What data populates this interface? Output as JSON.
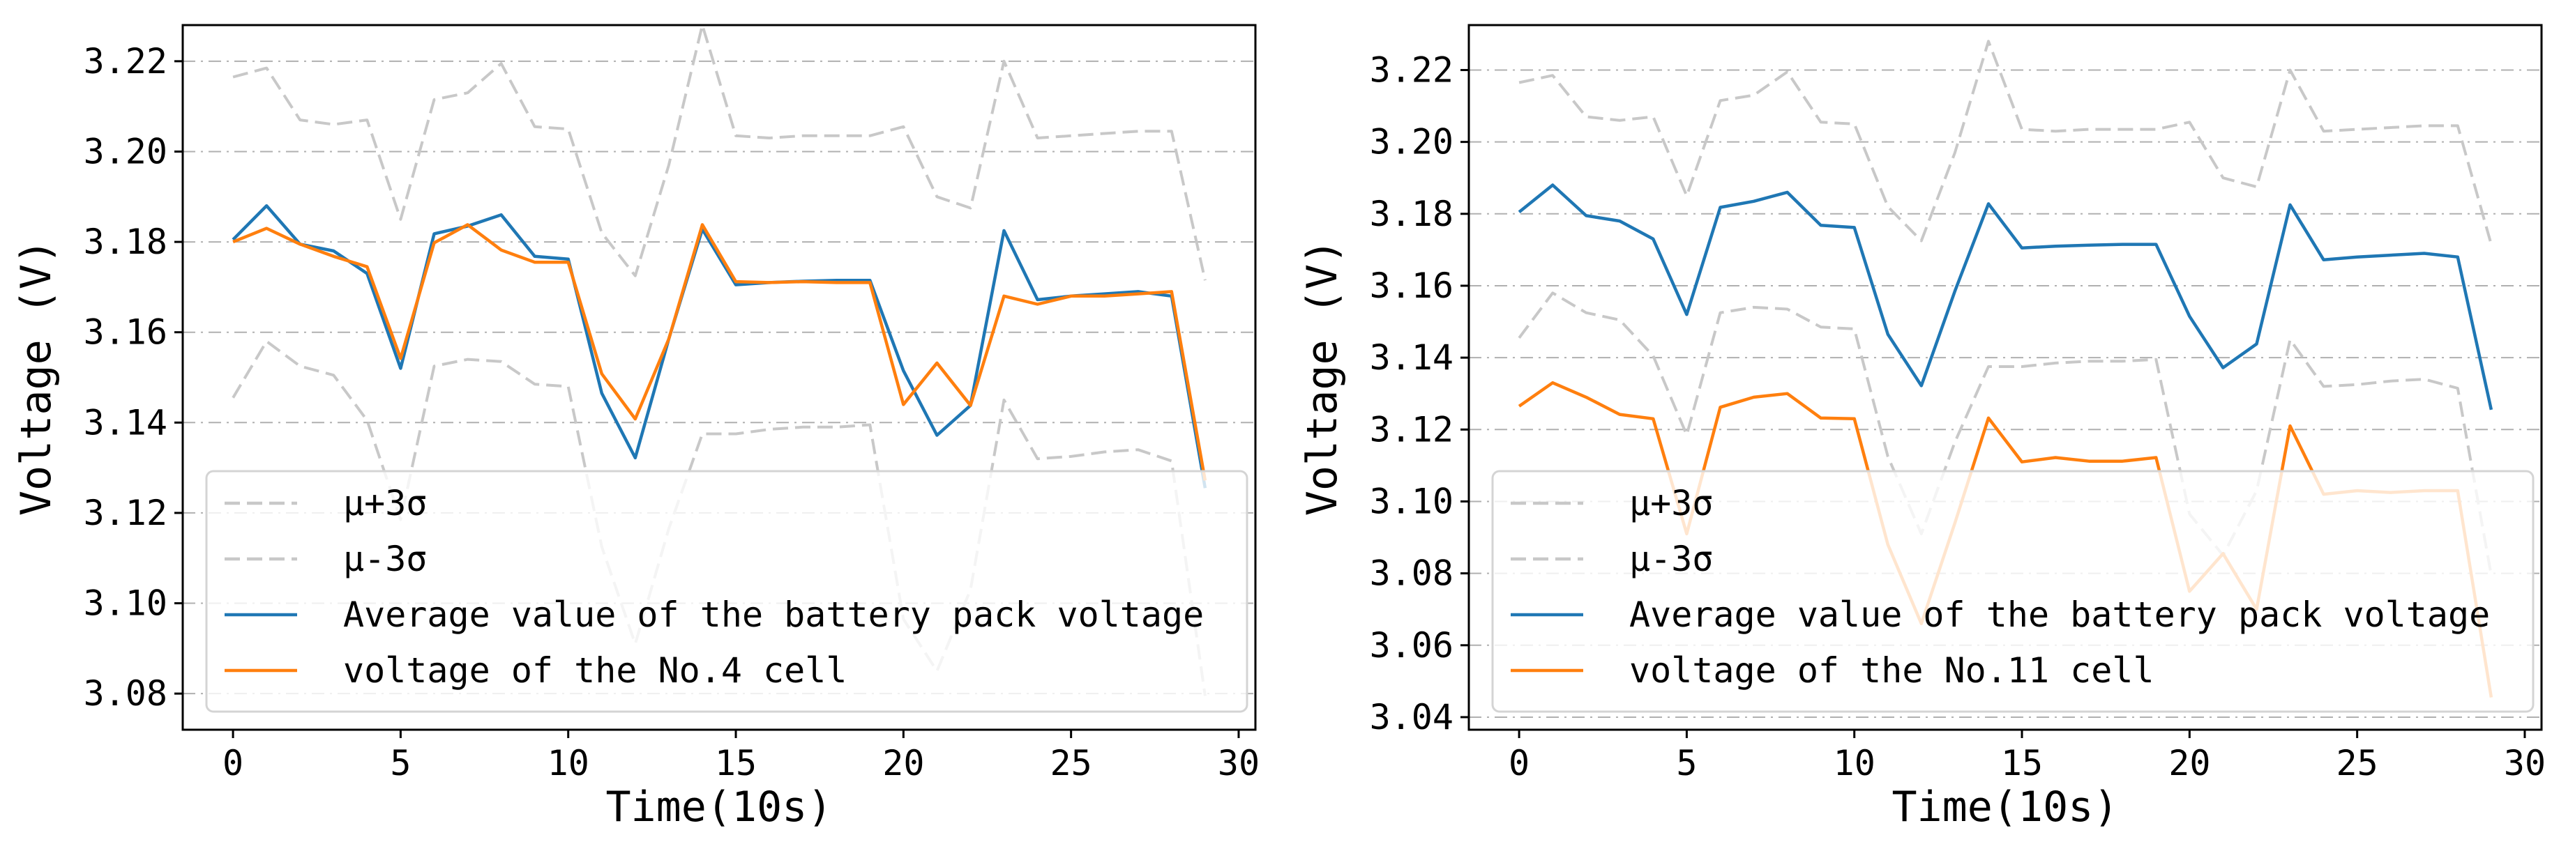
{
  "chart_data": [
    {
      "type": "line",
      "title": "",
      "xlabel": "Time(10s)",
      "ylabel": "Voltage (V)",
      "xlim": [
        -1.5,
        30.5
      ],
      "ylim": [
        3.072,
        3.228
      ],
      "xticks": [
        0,
        5,
        10,
        15,
        20,
        25,
        30
      ],
      "xtick_labels": [
        "0",
        "5",
        "10",
        "15",
        "20",
        "25",
        "30"
      ],
      "yticks": [
        3.08,
        3.1,
        3.12,
        3.14,
        3.16,
        3.18,
        3.2,
        3.22
      ],
      "ytick_labels": [
        "3.08",
        "3.10",
        "3.12",
        "3.14",
        "3.16",
        "3.18",
        "3.20",
        "3.22"
      ],
      "grid": "horizontal dash-dot",
      "legend_position": "lower-left",
      "x": [
        0,
        1,
        2,
        3,
        4,
        5,
        6,
        7,
        8,
        9,
        10,
        11,
        12,
        13,
        14,
        15,
        16,
        17,
        18,
        19,
        20,
        21,
        22,
        23,
        24,
        25,
        26,
        27,
        28,
        29
      ],
      "series": [
        {
          "name": "μ+3σ",
          "color": "#c8c8c8",
          "style": "dashed",
          "values": [
            3.2165,
            3.2185,
            3.207,
            3.206,
            3.207,
            3.185,
            3.2115,
            3.213,
            3.2195,
            3.2055,
            3.205,
            3.182,
            3.1725,
            3.197,
            3.228,
            3.2035,
            3.203,
            3.2035,
            3.2035,
            3.2035,
            3.2055,
            3.19,
            3.1875,
            3.22,
            3.203,
            3.2035,
            3.204,
            3.2045,
            3.2045,
            3.1715
          ]
        },
        {
          "name": "μ-3σ",
          "color": "#c8c8c8",
          "style": "dashed",
          "values": [
            3.1455,
            3.158,
            3.1525,
            3.1505,
            3.1405,
            3.1185,
            3.1525,
            3.154,
            3.1535,
            3.1485,
            3.148,
            3.1125,
            3.091,
            3.1165,
            3.1375,
            3.1375,
            3.1385,
            3.139,
            3.139,
            3.1395,
            3.0965,
            3.085,
            3.103,
            3.145,
            3.132,
            3.1325,
            3.1335,
            3.134,
            3.1315,
            3.0795
          ]
        },
        {
          "name": "Average value of the battery pack voltage",
          "color": "#1f77b4",
          "style": "solid",
          "values": [
            3.1805,
            3.188,
            3.1795,
            3.178,
            3.173,
            3.152,
            3.1818,
            3.1835,
            3.186,
            3.1768,
            3.1762,
            3.1465,
            3.1322,
            3.1585,
            3.1828,
            3.1705,
            3.171,
            3.1713,
            3.1715,
            3.1715,
            3.1515,
            3.1372,
            3.1438,
            3.1825,
            3.1672,
            3.168,
            3.1685,
            3.169,
            3.168,
            3.1255
          ]
        },
        {
          "name": "voltage of the No.4 cell",
          "color": "#ff7f0e",
          "style": "solid",
          "values": [
            3.18,
            3.183,
            3.1795,
            3.1768,
            3.1745,
            3.1542,
            3.1798,
            3.1838,
            3.1782,
            3.1755,
            3.1755,
            3.1508,
            3.1408,
            3.1585,
            3.1838,
            3.1712,
            3.171,
            3.1712,
            3.171,
            3.171,
            3.144,
            3.1532,
            3.1438,
            3.168,
            3.1662,
            3.168,
            3.168,
            3.1685,
            3.169,
            3.1272
          ]
        }
      ],
      "legend": [
        "μ+3σ",
        "μ-3σ",
        "Average value of the battery pack voltage",
        "voltage of the No.4 cell"
      ]
    },
    {
      "type": "line",
      "title": "",
      "xlabel": "Time(10s)",
      "ylabel": "Voltage (V)",
      "xlim": [
        -1.5,
        30.5
      ],
      "ylim": [
        3.0365,
        3.2325
      ],
      "xticks": [
        0,
        5,
        10,
        15,
        20,
        25,
        30
      ],
      "xtick_labels": [
        "0",
        "5",
        "10",
        "15",
        "20",
        "25",
        "30"
      ],
      "yticks": [
        3.04,
        3.06,
        3.08,
        3.1,
        3.12,
        3.14,
        3.16,
        3.18,
        3.2,
        3.22
      ],
      "ytick_labels": [
        "3.04",
        "3.06",
        "3.08",
        "3.10",
        "3.12",
        "3.14",
        "3.16",
        "3.18",
        "3.20",
        "3.22"
      ],
      "grid": "horizontal dash-dot",
      "legend_position": "lower-left",
      "x": [
        0,
        1,
        2,
        3,
        4,
        5,
        6,
        7,
        8,
        9,
        10,
        11,
        12,
        13,
        14,
        15,
        16,
        17,
        18,
        19,
        20,
        21,
        22,
        23,
        24,
        25,
        26,
        27,
        28,
        29
      ],
      "series": [
        {
          "name": "μ+3σ",
          "color": "#c8c8c8",
          "style": "dashed",
          "values": [
            3.2165,
            3.2185,
            3.207,
            3.206,
            3.207,
            3.185,
            3.2115,
            3.213,
            3.2195,
            3.2055,
            3.205,
            3.182,
            3.1725,
            3.197,
            3.228,
            3.2035,
            3.203,
            3.2035,
            3.2035,
            3.2035,
            3.2055,
            3.19,
            3.1875,
            3.22,
            3.203,
            3.2035,
            3.204,
            3.2045,
            3.2045,
            3.1715
          ]
        },
        {
          "name": "μ-3σ",
          "color": "#c8c8c8",
          "style": "dashed",
          "values": [
            3.1455,
            3.158,
            3.1525,
            3.1505,
            3.1405,
            3.1185,
            3.1525,
            3.154,
            3.1535,
            3.1485,
            3.148,
            3.1125,
            3.091,
            3.1165,
            3.1375,
            3.1375,
            3.1385,
            3.139,
            3.139,
            3.1395,
            3.0965,
            3.085,
            3.103,
            3.145,
            3.132,
            3.1325,
            3.1335,
            3.134,
            3.1315,
            3.0795
          ]
        },
        {
          "name": "Average value of the battery pack voltage",
          "color": "#1f77b4",
          "style": "solid",
          "values": [
            3.1805,
            3.188,
            3.1795,
            3.178,
            3.173,
            3.152,
            3.1818,
            3.1835,
            3.186,
            3.1768,
            3.1762,
            3.1465,
            3.1322,
            3.1585,
            3.1828,
            3.1705,
            3.171,
            3.1713,
            3.1715,
            3.1715,
            3.1515,
            3.1372,
            3.1438,
            3.1825,
            3.1672,
            3.168,
            3.1685,
            3.169,
            3.168,
            3.1255
          ]
        },
        {
          "name": "voltage of the No.11 cell",
          "color": "#ff7f0e",
          "style": "solid",
          "values": [
            3.1265,
            3.133,
            3.129,
            3.1242,
            3.123,
            3.091,
            3.1262,
            3.129,
            3.13,
            3.1232,
            3.123,
            3.088,
            3.066,
            3.094,
            3.1232,
            3.111,
            3.1122,
            3.1112,
            3.1112,
            3.1122,
            3.075,
            3.0855,
            3.07,
            3.121,
            3.102,
            3.103,
            3.1025,
            3.103,
            3.103,
            3.0455
          ]
        }
      ],
      "legend": [
        "μ+3σ",
        "μ-3σ",
        "Average value of the battery pack voltage",
        "voltage of the No.11 cell"
      ]
    }
  ]
}
